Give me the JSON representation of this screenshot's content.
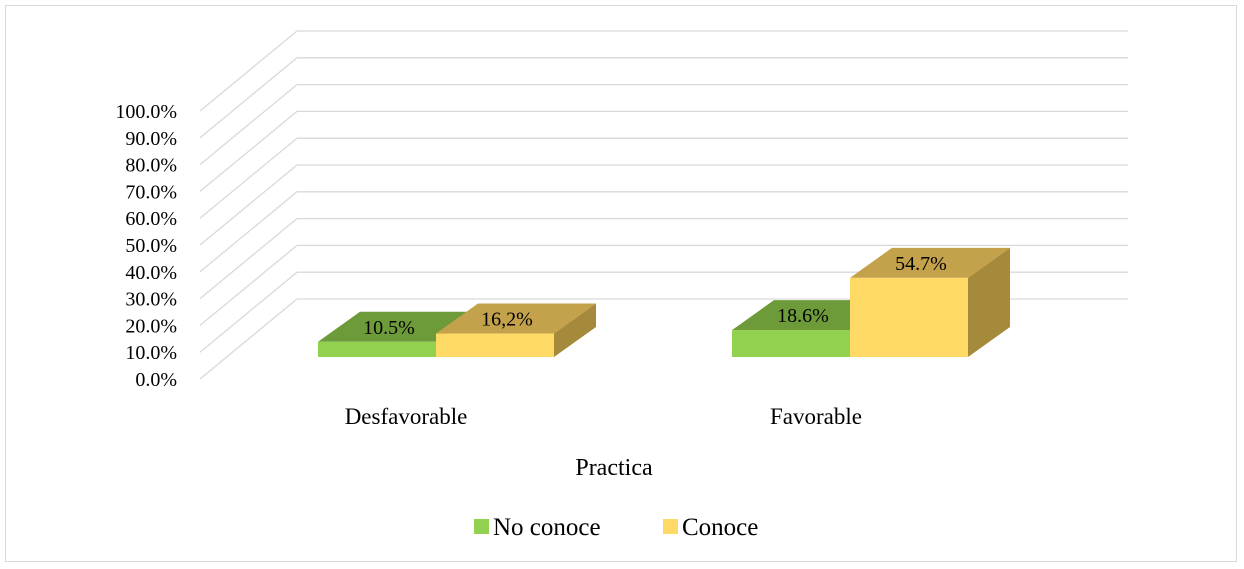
{
  "chart_data": {
    "type": "bar",
    "xlabel": "Practica",
    "categories": [
      "Desfavorable",
      "Favorable"
    ],
    "series": [
      {
        "name": "No conoce",
        "values": [
          10.5,
          18.6
        ],
        "labels": [
          "10.5%",
          "18.6%"
        ]
      },
      {
        "name": "Conoce",
        "values": [
          16.2,
          54.7
        ],
        "labels": [
          "16,2%",
          "54.7%"
        ]
      }
    ],
    "ylim": [
      0,
      100
    ],
    "yticks": [
      "0.0%",
      "10.0%",
      "20.0%",
      "30.0%",
      "40.0%",
      "50.0%",
      "60.0%",
      "70.0%",
      "80.0%",
      "90.0%",
      "100.0%"
    ],
    "grid": true,
    "legend_position": "bottom",
    "colors": {
      "No conoce": {
        "front": "#92d050",
        "top": "#6d9b3a",
        "side": "#5e8a30"
      },
      "Conoce": {
        "front": "#ffd966",
        "top": "#c4a24c",
        "side": "#a68a3c"
      },
      "grid": "#d9d9d9"
    }
  }
}
